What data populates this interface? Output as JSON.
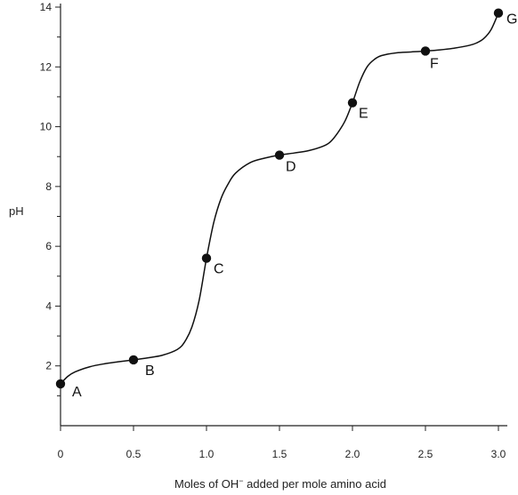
{
  "chart_data": {
    "type": "line",
    "title": "",
    "xlabel": "Moles of OH",
    "xlabel_superscript": "−",
    "xlabel_suffix": " added per mole amino acid",
    "ylabel": "pH",
    "xlim": [
      0,
      3.0
    ],
    "ylim": [
      0,
      14
    ],
    "x_ticks": [
      "0",
      "0.5",
      "1.0",
      "1.5",
      "2.0",
      "2.5",
      "3.0"
    ],
    "y_ticks": [
      "2",
      "4",
      "6",
      "8",
      "10",
      "12",
      "14"
    ],
    "grid": false,
    "curve": [
      [
        0,
        1.4
      ],
      [
        0.05,
        1.65
      ],
      [
        0.1,
        1.8
      ],
      [
        0.2,
        1.97
      ],
      [
        0.3,
        2.07
      ],
      [
        0.4,
        2.14
      ],
      [
        0.5,
        2.2
      ],
      [
        0.6,
        2.27
      ],
      [
        0.7,
        2.36
      ],
      [
        0.8,
        2.55
      ],
      [
        0.85,
        2.8
      ],
      [
        0.9,
        3.3
      ],
      [
        0.95,
        4.2
      ],
      [
        1.0,
        5.6
      ],
      [
        1.05,
        6.8
      ],
      [
        1.1,
        7.6
      ],
      [
        1.15,
        8.1
      ],
      [
        1.2,
        8.45
      ],
      [
        1.3,
        8.8
      ],
      [
        1.4,
        8.95
      ],
      [
        1.5,
        9.05
      ],
      [
        1.6,
        9.12
      ],
      [
        1.7,
        9.2
      ],
      [
        1.8,
        9.35
      ],
      [
        1.85,
        9.5
      ],
      [
        1.9,
        9.8
      ],
      [
        1.95,
        10.2
      ],
      [
        2.0,
        10.8
      ],
      [
        2.05,
        11.5
      ],
      [
        2.1,
        12.0
      ],
      [
        2.15,
        12.25
      ],
      [
        2.2,
        12.38
      ],
      [
        2.3,
        12.47
      ],
      [
        2.4,
        12.5
      ],
      [
        2.5,
        12.53
      ],
      [
        2.6,
        12.57
      ],
      [
        2.7,
        12.63
      ],
      [
        2.8,
        12.72
      ],
      [
        2.85,
        12.8
      ],
      [
        2.9,
        12.95
      ],
      [
        2.95,
        13.25
      ],
      [
        3.0,
        13.8
      ]
    ],
    "points": [
      {
        "label": "A",
        "x": 0,
        "y": 1.4
      },
      {
        "label": "B",
        "x": 0.5,
        "y": 2.2
      },
      {
        "label": "C",
        "x": 1.0,
        "y": 5.6
      },
      {
        "label": "D",
        "x": 1.5,
        "y": 9.05
      },
      {
        "label": "E",
        "x": 2.0,
        "y": 10.8
      },
      {
        "label": "F",
        "x": 2.5,
        "y": 12.53
      },
      {
        "label": "G",
        "x": 3.0,
        "y": 13.8
      }
    ],
    "colors": {
      "line": "#111111",
      "point": "#111111",
      "axis": "#222222"
    }
  }
}
